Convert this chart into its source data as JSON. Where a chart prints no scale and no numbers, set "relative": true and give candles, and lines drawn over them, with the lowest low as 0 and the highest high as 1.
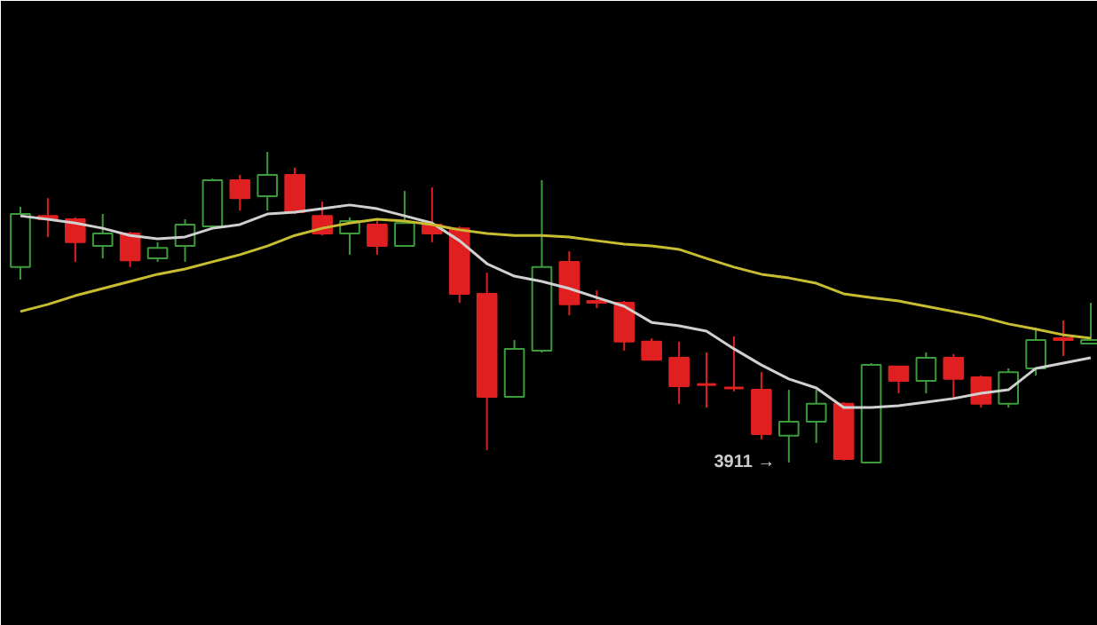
{
  "chart_data": {
    "type": "candlestick",
    "relative": true,
    "categories": [
      null,
      null,
      null,
      null,
      null,
      null,
      null,
      null,
      null,
      null,
      null,
      null,
      null,
      null,
      null,
      null,
      null,
      null,
      null,
      null,
      null,
      null,
      null,
      null,
      null,
      null,
      null,
      null,
      null,
      null,
      null,
      null,
      null,
      null,
      null,
      null,
      null,
      null,
      null,
      null
    ],
    "ohlc": [
      [
        0.629,
        0.823,
        0.589,
        0.8
      ],
      [
        0.794,
        0.851,
        0.726,
        0.783
      ],
      [
        0.783,
        0.789,
        0.646,
        0.709
      ],
      [
        0.697,
        0.8,
        0.657,
        0.737
      ],
      [
        0.737,
        0.743,
        0.629,
        0.651
      ],
      [
        0.657,
        0.709,
        0.646,
        0.691
      ],
      [
        0.697,
        0.783,
        0.646,
        0.766
      ],
      [
        0.76,
        0.914,
        0.754,
        0.909
      ],
      [
        0.909,
        0.926,
        0.811,
        0.851
      ],
      [
        0.857,
        1.0,
        0.811,
        0.926
      ],
      [
        0.926,
        0.949,
        0.8,
        0.806
      ],
      [
        0.794,
        0.84,
        0.731,
        0.737
      ],
      [
        0.737,
        0.789,
        0.669,
        0.777
      ],
      [
        0.766,
        0.777,
        0.669,
        0.697
      ],
      [
        0.697,
        0.874,
        0.697,
        0.771
      ],
      [
        0.766,
        0.886,
        0.709,
        0.737
      ],
      [
        0.754,
        0.76,
        0.514,
        0.543
      ],
      [
        0.543,
        0.611,
        0.04,
        0.211
      ],
      [
        0.211,
        0.394,
        0.211,
        0.366
      ],
      [
        0.36,
        0.909,
        0.354,
        0.629
      ],
      [
        0.646,
        0.68,
        0.474,
        0.509
      ],
      [
        0.52,
        0.554,
        0.497,
        0.514
      ],
      [
        0.514,
        0.52,
        0.36,
        0.389
      ],
      [
        0.389,
        0.4,
        0.331,
        0.331
      ],
      [
        0.337,
        0.389,
        0.189,
        0.246
      ],
      [
        0.251,
        0.354,
        0.177,
        0.246
      ],
      [
        0.24,
        0.406,
        0.229,
        0.234
      ],
      [
        0.234,
        0.291,
        0.074,
        0.091
      ],
      [
        0.086,
        0.234,
        0.0,
        0.131
      ],
      [
        0.131,
        0.234,
        0.063,
        0.189
      ],
      [
        0.189,
        0.194,
        0.006,
        0.011
      ],
      [
        0.0,
        0.32,
        0.0,
        0.314
      ],
      [
        0.309,
        0.309,
        0.223,
        0.263
      ],
      [
        0.263,
        0.354,
        0.223,
        0.337
      ],
      [
        0.337,
        0.349,
        0.206,
        0.269
      ],
      [
        0.274,
        0.28,
        0.177,
        0.189
      ],
      [
        0.189,
        0.303,
        0.177,
        0.291
      ],
      [
        0.303,
        0.434,
        0.28,
        0.394
      ],
      [
        0.4,
        0.457,
        0.343,
        0.394
      ],
      [
        0.383,
        0.514,
        0.383,
        0.394
      ]
    ],
    "colors": [
      "#3c9c3c",
      "#e02020",
      "#e02020",
      "#3c9c3c",
      "#e02020",
      "#3c9c3c",
      "#3c9c3c",
      "#3c9c3c",
      "#e02020",
      "#3c9c3c",
      "#e02020",
      "#e02020",
      "#3c9c3c",
      "#e02020",
      "#3c9c3c",
      "#e02020",
      "#e02020",
      "#e02020",
      "#3c9c3c",
      "#3c9c3c",
      "#e02020",
      "#e02020",
      "#e02020",
      "#e02020",
      "#e02020",
      "#e02020",
      "#e02020",
      "#e02020",
      "#3c9c3c",
      "#3c9c3c",
      "#e02020",
      "#3c9c3c",
      "#e02020",
      "#3c9c3c",
      "#e02020",
      "#e02020",
      "#3c9c3c",
      "#3c9c3c",
      "#e02020",
      "#3c9c3c"
    ],
    "series": [
      {
        "type": "line",
        "color": "#d0d0d0",
        "values": [
          0.794,
          0.783,
          0.771,
          0.754,
          0.731,
          0.72,
          0.726,
          0.754,
          0.766,
          0.8,
          0.806,
          0.817,
          0.829,
          0.817,
          0.794,
          0.771,
          0.714,
          0.64,
          0.6,
          0.583,
          0.56,
          0.531,
          0.503,
          0.451,
          0.44,
          0.423,
          0.366,
          0.314,
          0.269,
          0.24,
          0.177,
          0.177,
          0.183,
          0.194,
          0.206,
          0.223,
          0.234,
          0.303,
          0.32,
          0.337
        ]
      },
      {
        "type": "line",
        "color": "#c8bc30",
        "values": [
          0.486,
          0.509,
          0.537,
          0.56,
          0.583,
          0.606,
          0.623,
          0.646,
          0.669,
          0.697,
          0.731,
          0.754,
          0.771,
          0.783,
          0.777,
          0.766,
          0.749,
          0.737,
          0.731,
          0.731,
          0.726,
          0.714,
          0.703,
          0.697,
          0.686,
          0.657,
          0.629,
          0.606,
          0.594,
          0.577,
          0.543,
          0.531,
          0.52,
          0.503,
          0.486,
          0.469,
          0.446,
          0.429,
          0.411,
          0.4
        ]
      }
    ],
    "annotations": [
      "3911 →"
    ]
  }
}
